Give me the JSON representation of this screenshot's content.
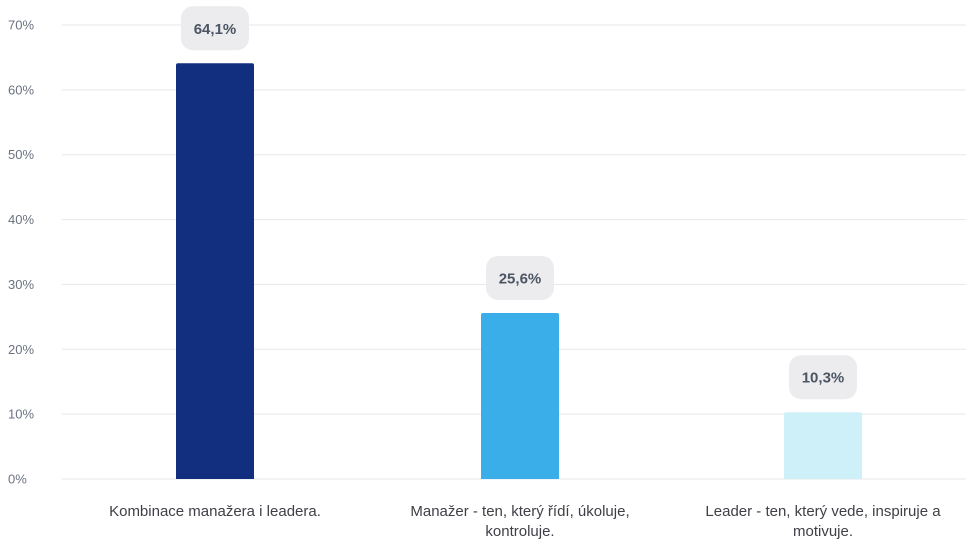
{
  "chart_data": {
    "type": "bar",
    "title": "",
    "xlabel": "",
    "ylabel": "",
    "ylim": [
      0,
      70
    ],
    "yticks": [
      0,
      10,
      20,
      30,
      40,
      50,
      60,
      70
    ],
    "ytick_labels": [
      "0%",
      "10%",
      "20%",
      "30%",
      "40%",
      "50%",
      "60%",
      "70%"
    ],
    "grid": true,
    "legend": "none",
    "categories": [
      [
        "Kombinace manažera i leadera."
      ],
      [
        "Manažer - ten, který řídí, úkoluje,",
        "kontroluje."
      ],
      [
        "Leader - ten, který vede, inspiruje a",
        "motivuje."
      ]
    ],
    "values": [
      64.1,
      25.6,
      10.3
    ],
    "value_labels": [
      "64,1%",
      "25,6%",
      "10,3%"
    ],
    "bar_colors": [
      "#122e7f",
      "#3aaee8",
      "#cdf0f9"
    ]
  }
}
